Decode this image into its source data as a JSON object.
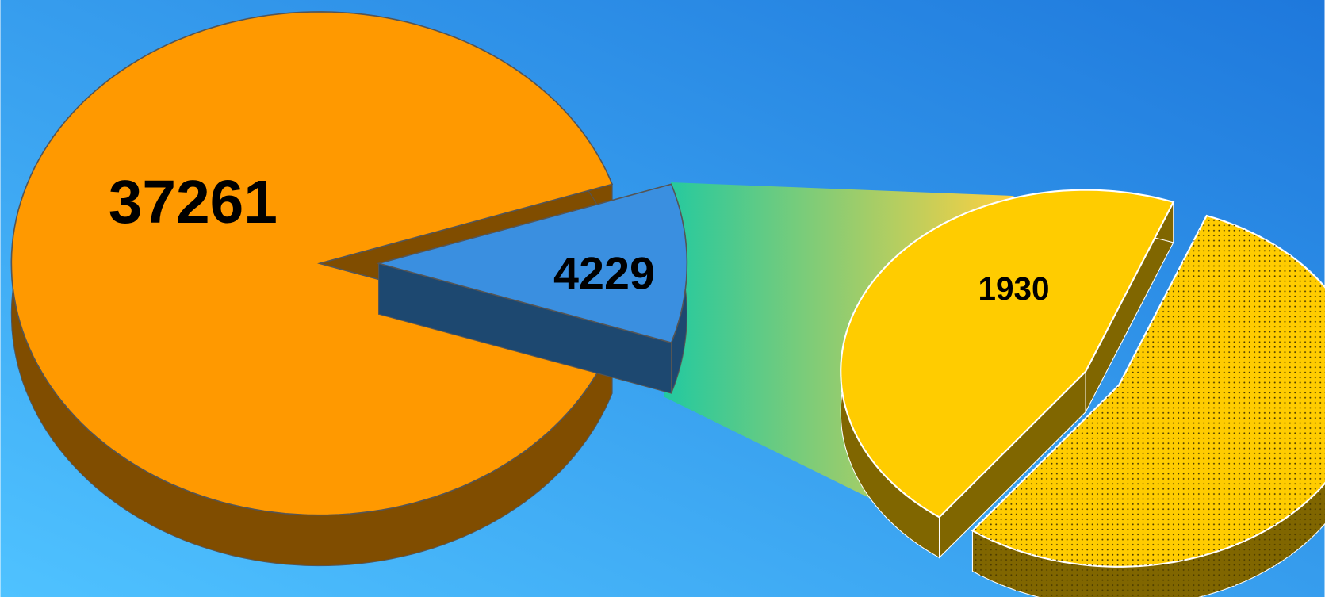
{
  "chart_data": {
    "type": "pie-of-pie",
    "main": {
      "values": [
        37261,
        4229
      ],
      "colors": [
        "#ff9900",
        "#3a8fe0"
      ]
    },
    "secondary": {
      "values": [
        1930,
        2299
      ],
      "value_labels": [
        "1930",
        null
      ],
      "colors": [
        "#ffcc00",
        "#ffcc00"
      ],
      "fill_patterns": [
        "solid",
        "dotted"
      ]
    }
  }
}
